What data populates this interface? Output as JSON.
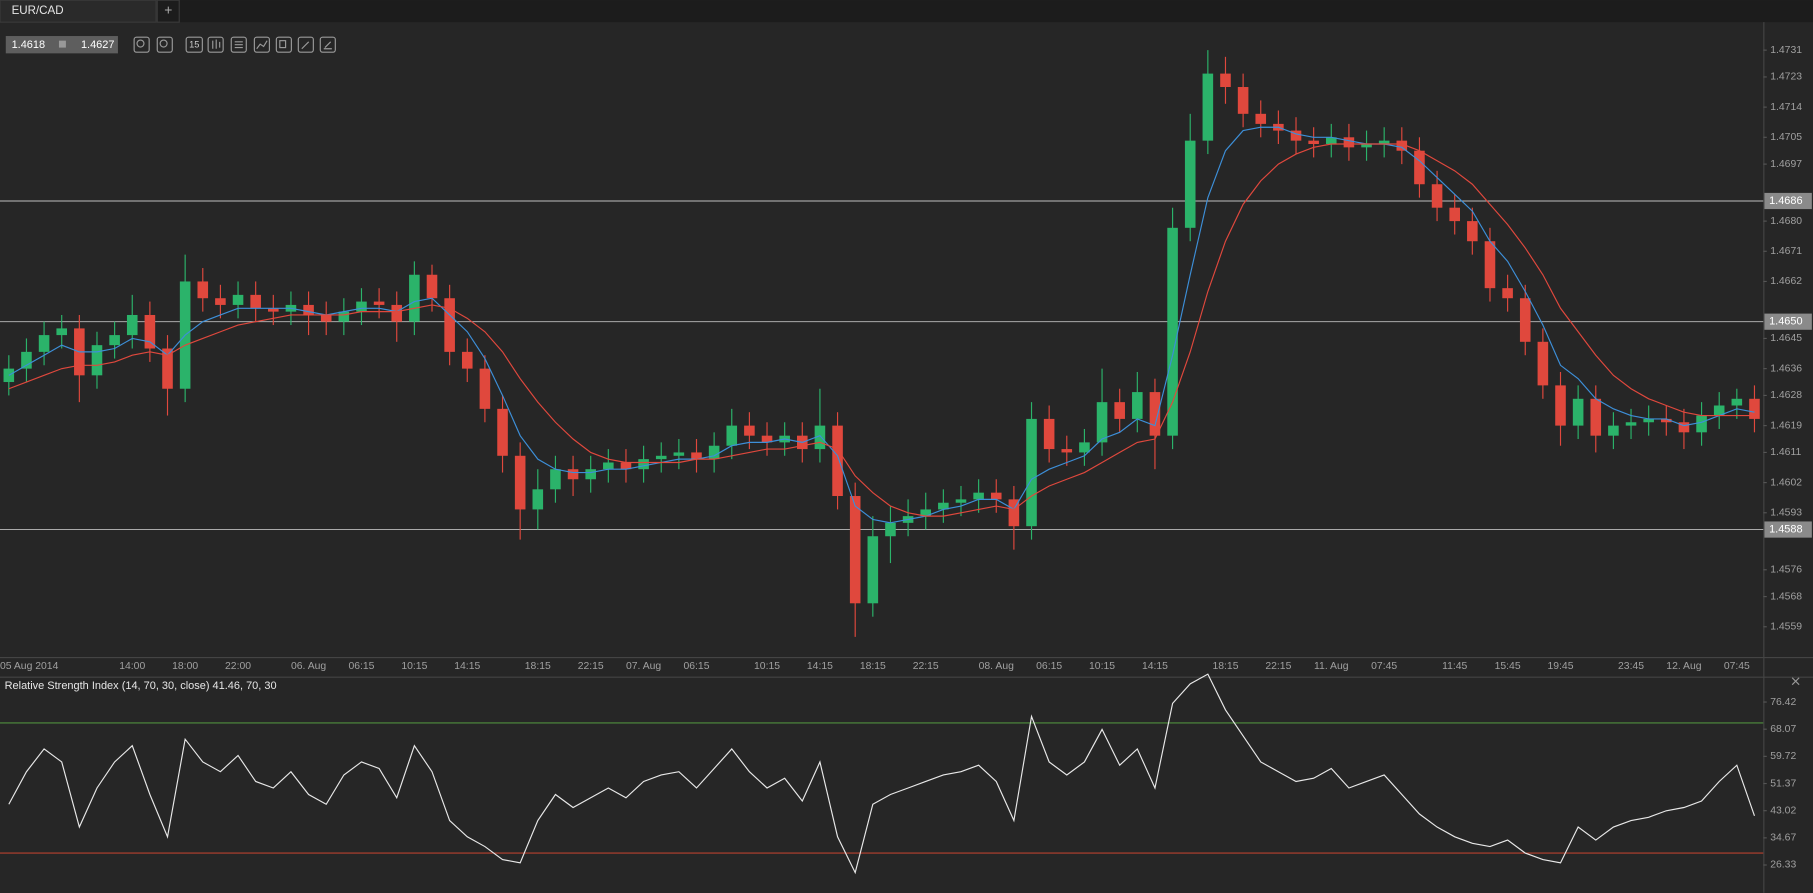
{
  "tab": {
    "title": "EUR/CAD",
    "add": "+"
  },
  "quote": {
    "bid": "1.4618",
    "ask": "1.4627"
  },
  "toolbar": {
    "interval": "15"
  },
  "chart_data": [
    {
      "type": "candlestick",
      "categories": [
        null,
        "05 Aug 2014",
        null,
        null,
        null,
        null,
        null,
        "14:00",
        null,
        null,
        "18:00",
        null,
        null,
        "22:00",
        null,
        null,
        null,
        "06. Aug",
        null,
        null,
        "06:15",
        null,
        null,
        "10:15",
        null,
        null,
        "14:15",
        null,
        null,
        null,
        "18:15",
        null,
        null,
        "22:15",
        null,
        null,
        "07. Aug",
        null,
        null,
        "06:15",
        null,
        null,
        null,
        "10:15",
        null,
        null,
        "14:15",
        null,
        null,
        "18:15",
        null,
        null,
        "22:15",
        null,
        null,
        null,
        "08. Aug",
        null,
        null,
        "06:15",
        null,
        null,
        "10:15",
        null,
        null,
        "14:15",
        null,
        null,
        null,
        "18:15",
        null,
        null,
        "22:15",
        null,
        null,
        "11. Aug",
        null,
        null,
        "07:45",
        null,
        null,
        null,
        "11:45",
        null,
        null,
        "15:45",
        null,
        null,
        "19:45",
        null,
        null,
        null,
        "23:45",
        null,
        null,
        "12. Aug",
        null,
        null,
        "07:45",
        null
      ],
      "open": [
        1.4632,
        1.4636,
        1.4641,
        1.4646,
        1.4648,
        1.4634,
        1.4643,
        1.4646,
        1.4652,
        1.4642,
        1.463,
        1.4662,
        1.4657,
        1.4655,
        1.4658,
        1.4654,
        1.4653,
        1.4655,
        1.4652,
        1.465,
        1.4653,
        1.4656,
        1.4655,
        1.465,
        1.4664,
        1.4657,
        1.4641,
        1.4636,
        1.4624,
        1.461,
        1.4594,
        1.46,
        1.4606,
        1.4603,
        1.4606,
        1.4608,
        1.4606,
        1.4609,
        1.461,
        1.4611,
        1.4609,
        1.4613,
        1.4619,
        1.4616,
        1.4614,
        1.4616,
        1.4612,
        1.4619,
        1.4598,
        1.4566,
        1.4586,
        1.459,
        1.4592,
        1.4594,
        1.4596,
        1.4597,
        1.4599,
        1.4597,
        1.4589,
        1.4621,
        1.4612,
        1.4611,
        1.4614,
        1.4626,
        1.4621,
        1.4629,
        1.4616,
        1.4678,
        1.4704,
        1.4724,
        1.472,
        1.4712,
        1.4709,
        1.4707,
        1.4704,
        1.4703,
        1.4705,
        1.4702,
        1.4703,
        1.4704,
        1.4701,
        1.4691,
        1.4684,
        1.468,
        1.4674,
        1.466,
        1.4657,
        1.4644,
        1.4631,
        1.4619,
        1.4627,
        1.4616,
        1.4619,
        1.462,
        1.4621,
        1.462,
        1.4617,
        1.4622,
        1.4625,
        1.4627
      ],
      "high": [
        1.464,
        1.4645,
        1.465,
        1.4652,
        1.4652,
        1.4647,
        1.465,
        1.4658,
        1.4656,
        1.4646,
        1.467,
        1.4666,
        1.4661,
        1.4662,
        1.4662,
        1.4658,
        1.4659,
        1.4659,
        1.4656,
        1.4657,
        1.466,
        1.466,
        1.4659,
        1.4668,
        1.4667,
        1.4661,
        1.4645,
        1.464,
        1.4628,
        1.4614,
        1.4606,
        1.461,
        1.461,
        1.461,
        1.4612,
        1.4612,
        1.4613,
        1.4614,
        1.4615,
        1.4615,
        1.4617,
        1.4624,
        1.4623,
        1.462,
        1.462,
        1.462,
        1.463,
        1.4623,
        1.4602,
        1.4592,
        1.4595,
        1.4597,
        1.4599,
        1.46,
        1.4601,
        1.4603,
        1.4603,
        1.4601,
        1.4626,
        1.4625,
        1.4616,
        1.4618,
        1.4636,
        1.463,
        1.4635,
        1.4633,
        1.4684,
        1.4712,
        1.4731,
        1.4729,
        1.4724,
        1.4716,
        1.4713,
        1.4711,
        1.4708,
        1.4709,
        1.4709,
        1.4707,
        1.4708,
        1.4708,
        1.4705,
        1.4695,
        1.4688,
        1.4684,
        1.4678,
        1.4664,
        1.4661,
        1.4648,
        1.4635,
        1.4631,
        1.4631,
        1.4623,
        1.4624,
        1.4625,
        1.4625,
        1.4624,
        1.4626,
        1.4629,
        1.463,
        1.4631
      ],
      "low": [
        1.4628,
        1.4632,
        1.4637,
        1.4642,
        1.4626,
        1.463,
        1.4639,
        1.4642,
        1.4638,
        1.4622,
        1.4626,
        1.4653,
        1.4651,
        1.4651,
        1.465,
        1.4649,
        1.4649,
        1.4646,
        1.4646,
        1.4646,
        1.4649,
        1.4651,
        1.4644,
        1.4646,
        1.4653,
        1.4637,
        1.4632,
        1.462,
        1.4605,
        1.4585,
        1.4588,
        1.4596,
        1.4598,
        1.4599,
        1.4602,
        1.4602,
        1.4602,
        1.4605,
        1.4606,
        1.4605,
        1.4605,
        1.4609,
        1.4612,
        1.461,
        1.461,
        1.4608,
        1.4608,
        1.4594,
        1.4556,
        1.4562,
        1.4578,
        1.4586,
        1.4588,
        1.459,
        1.4592,
        1.4593,
        1.4593,
        1.4582,
        1.4585,
        1.4608,
        1.4607,
        1.4607,
        1.461,
        1.4617,
        1.4617,
        1.4606,
        1.4612,
        1.4674,
        1.47,
        1.4715,
        1.4708,
        1.4705,
        1.4703,
        1.47,
        1.4699,
        1.4699,
        1.4698,
        1.4698,
        1.4699,
        1.4697,
        1.4687,
        1.468,
        1.4676,
        1.467,
        1.4656,
        1.4653,
        1.464,
        1.4627,
        1.4613,
        1.4615,
        1.4611,
        1.4612,
        1.4615,
        1.4616,
        1.4616,
        1.4612,
        1.4613,
        1.4618,
        1.4621,
        1.4617
      ],
      "close": [
        1.4636,
        1.4641,
        1.4646,
        1.4648,
        1.4634,
        1.4643,
        1.4646,
        1.4652,
        1.4642,
        1.463,
        1.4662,
        1.4657,
        1.4655,
        1.4658,
        1.4654,
        1.4653,
        1.4655,
        1.4652,
        1.465,
        1.4653,
        1.4656,
        1.4655,
        1.465,
        1.4664,
        1.4657,
        1.4641,
        1.4636,
        1.4624,
        1.461,
        1.4594,
        1.46,
        1.4606,
        1.4603,
        1.4606,
        1.4608,
        1.4606,
        1.4609,
        1.461,
        1.4611,
        1.4609,
        1.4613,
        1.4619,
        1.4616,
        1.4614,
        1.4616,
        1.4612,
        1.4619,
        1.4598,
        1.4566,
        1.4586,
        1.459,
        1.4592,
        1.4594,
        1.4596,
        1.4597,
        1.4599,
        1.4597,
        1.4589,
        1.4621,
        1.4612,
        1.4611,
        1.4614,
        1.4626,
        1.4621,
        1.4629,
        1.4616,
        1.4678,
        1.4704,
        1.4724,
        1.472,
        1.4712,
        1.4709,
        1.4707,
        1.4704,
        1.4703,
        1.4705,
        1.4702,
        1.4703,
        1.4704,
        1.4701,
        1.4691,
        1.4684,
        1.468,
        1.4674,
        1.466,
        1.4657,
        1.4644,
        1.4631,
        1.4619,
        1.4627,
        1.4616,
        1.4619,
        1.462,
        1.4621,
        1.462,
        1.4617,
        1.4622,
        1.4625,
        1.4627,
        1.4621
      ],
      "up_color": "#2bb36a",
      "down_color": "#e0483d",
      "series": [
        {
          "color": "#3d8fd8",
          "values": [
            1.4634,
            1.4637,
            1.464,
            1.4643,
            1.4641,
            1.4641,
            1.4642,
            1.4645,
            1.4644,
            1.464,
            1.4646,
            1.465,
            1.4652,
            1.4654,
            1.4654,
            1.4654,
            1.4654,
            1.4653,
            1.4652,
            1.4653,
            1.4654,
            1.4654,
            1.4653,
            1.4656,
            1.4657,
            1.4652,
            1.4647,
            1.4639,
            1.4628,
            1.4616,
            1.4609,
            1.4606,
            1.4605,
            1.4605,
            1.4606,
            1.4606,
            1.4607,
            1.4608,
            1.4609,
            1.4609,
            1.461,
            1.4613,
            1.4614,
            1.4614,
            1.4615,
            1.4614,
            1.4616,
            1.461,
            1.4595,
            1.4591,
            1.459,
            1.4591,
            1.4592,
            1.4594,
            1.4595,
            1.4597,
            1.4597,
            1.4594,
            1.4603,
            1.4606,
            1.4608,
            1.461,
            1.4615,
            1.4617,
            1.4621,
            1.4619,
            1.464,
            1.4664,
            1.4687,
            1.4701,
            1.4707,
            1.4708,
            1.4708,
            1.4706,
            1.4705,
            1.4705,
            1.4704,
            1.4703,
            1.4703,
            1.4702,
            1.4698,
            1.4693,
            1.4688,
            1.4683,
            1.4674,
            1.4668,
            1.4659,
            1.4649,
            1.4637,
            1.4633,
            1.4627,
            1.4624,
            1.4622,
            1.4621,
            1.4621,
            1.4619,
            1.462,
            1.4622,
            1.4624,
            1.4623
          ]
        },
        {
          "color": "#e0483d",
          "values": [
            1.463,
            1.4632,
            1.4634,
            1.4636,
            1.4637,
            1.4637,
            1.4638,
            1.464,
            1.4641,
            1.464,
            1.4643,
            1.4645,
            1.4647,
            1.4649,
            1.465,
            1.4651,
            1.4652,
            1.4652,
            1.4652,
            1.4652,
            1.4653,
            1.4653,
            1.4653,
            1.4654,
            1.4655,
            1.4654,
            1.4651,
            1.4647,
            1.4641,
            1.4633,
            1.4626,
            1.462,
            1.4615,
            1.4611,
            1.4609,
            1.4608,
            1.4608,
            1.4608,
            1.4608,
            1.4609,
            1.4609,
            1.461,
            1.4611,
            1.4612,
            1.4612,
            1.4613,
            1.4614,
            1.4612,
            1.4604,
            1.4599,
            1.4595,
            1.4593,
            1.4592,
            1.4592,
            1.4593,
            1.4594,
            1.4595,
            1.4594,
            1.4598,
            1.4601,
            1.4603,
            1.4605,
            1.4608,
            1.4611,
            1.4614,
            1.4615,
            1.4626,
            1.4641,
            1.4659,
            1.4674,
            1.4685,
            1.4692,
            1.4697,
            1.47,
            1.4702,
            1.4703,
            1.4703,
            1.4703,
            1.4703,
            1.4703,
            1.4701,
            1.4698,
            1.4695,
            1.4691,
            1.4685,
            1.4679,
            1.4672,
            1.4664,
            1.4654,
            1.4647,
            1.464,
            1.4634,
            1.463,
            1.4627,
            1.4625,
            1.4623,
            1.4622,
            1.4622,
            1.4622,
            1.4622
          ]
        }
      ],
      "ylim": [
        1.455,
        1.4739
      ],
      "yticks": [
        1.4731,
        1.4723,
        1.4714,
        1.4705,
        1.4697,
        {
          "value": 1.468,
          "label": "1.4680"
        },
        1.4671,
        1.4662,
        1.4645,
        1.4636,
        1.4628,
        1.4619,
        1.4611,
        1.4602,
        1.4593,
        1.4576,
        1.4568,
        1.4559
      ],
      "hlines": [
        1.4686,
        {
          "value": 1.465,
          "label": "1.4650"
        },
        1.4588
      ]
    },
    {
      "type": "line",
      "title": "Relative Strength Index (14, 70, 30, close) 41.46, 70, 30",
      "series": [
        {
          "color": "#e8e8e8",
          "values": [
            45,
            55,
            62,
            58,
            38,
            50,
            58,
            63,
            48,
            35,
            65,
            58,
            55,
            60,
            52,
            50,
            55,
            48,
            45,
            54,
            58,
            56,
            47,
            63,
            55,
            40,
            35,
            32,
            28,
            27,
            40,
            48,
            44,
            47,
            50,
            47,
            52,
            54,
            55,
            50,
            56,
            62,
            55,
            50,
            53,
            46,
            58,
            35,
            24,
            45,
            48,
            50,
            52,
            54,
            55,
            57,
            52,
            40,
            72,
            58,
            54,
            58,
            68,
            57,
            62,
            50,
            76,
            82,
            85,
            74,
            66,
            58,
            55,
            52,
            53,
            56,
            50,
            52,
            54,
            48,
            42,
            38,
            35,
            33,
            32,
            34,
            30,
            28,
            27,
            38,
            34,
            38,
            40,
            41,
            43,
            44,
            46,
            52,
            57,
            41.46
          ]
        }
      ],
      "levels": [
        70,
        30
      ],
      "level_colors": [
        "#4f8f3d",
        "#b8412f"
      ],
      "ylim": [
        17.78,
        84.24
      ],
      "yticks": [
        76.42,
        68.07,
        59.72,
        51.37,
        43.02,
        34.67,
        26.33
      ]
    }
  ]
}
